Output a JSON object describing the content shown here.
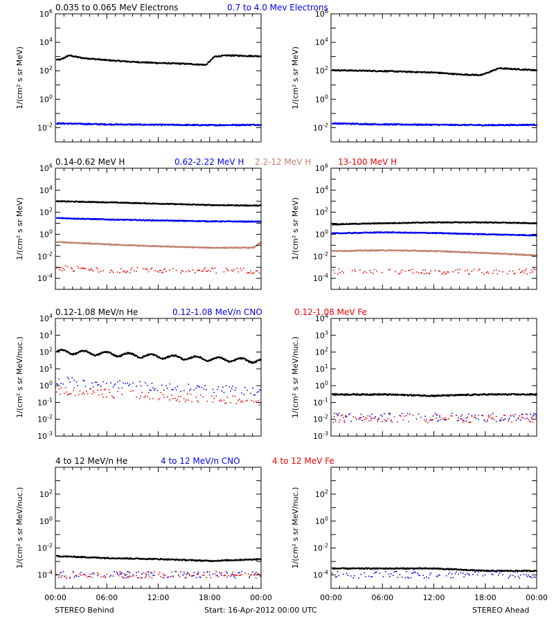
{
  "colors": {
    "black": "#000000",
    "blue": "#0000ee",
    "tan": "#c08070",
    "red": "#ee0000"
  },
  "footer": {
    "left": "STEREO Behind",
    "center": "Start: 16-Apr-2012 00:00 UTC",
    "right": "STEREO Ahead"
  },
  "x_ticks": [
    "00:00",
    "06:00",
    "12:00",
    "18:00",
    "00:00"
  ],
  "rows": [
    {
      "ylabel": "1/(cm² s sr MeV)",
      "ylim_exp": [
        -3,
        6
      ],
      "tick_exps": [
        -2,
        0,
        2,
        4,
        6
      ],
      "legend": [
        {
          "text": "0.035 to 0.065 MeV Electrons",
          "color": "#000000"
        },
        {
          "text": "0.7 to 4.0 Mev Electrons",
          "color": "#0000ee"
        }
      ]
    },
    {
      "ylabel": "1/(cm² s sr MeV)",
      "ylim_exp": [
        -5,
        6
      ],
      "tick_exps": [
        -4,
        -2,
        0,
        2,
        4,
        6
      ],
      "legend": [
        {
          "text": "0.14-0.62 MeV H",
          "color": "#000000"
        },
        {
          "text": "0.62-2.22 MeV H",
          "color": "#0000ee"
        },
        {
          "text": "2.2-12 MeV H",
          "color": "#c08070"
        },
        {
          "text": "13-100 MeV H",
          "color": "#ee0000"
        }
      ]
    },
    {
      "ylabel": "1/(cm² s sr MeV/nuc.)",
      "ylim_exp": [
        -3,
        4
      ],
      "tick_exps": [
        -3,
        -2,
        -1,
        0,
        1,
        2,
        3,
        4
      ],
      "legend": [
        {
          "text": "0.12-1.08 MeV/n He",
          "color": "#000000"
        },
        {
          "text": "0.12-1.08 MeV/n CNO",
          "color": "#0000ee"
        },
        {
          "text": "0.12-1.08 MeV Fe",
          "color": "#ee0000"
        }
      ]
    },
    {
      "ylabel": "1/(cm² s sr MeV/nuc.)",
      "ylim_exp": [
        -5,
        4
      ],
      "tick_exps": [
        -4,
        -2,
        0,
        2
      ],
      "legend": [
        {
          "text": "4 to 12 MeV/n He",
          "color": "#000000"
        },
        {
          "text": "4 to 12 MeV/n CNO",
          "color": "#0000ee"
        },
        {
          "text": "4 to 12 MeV Fe",
          "color": "#ee0000"
        }
      ]
    }
  ],
  "chart_data": [
    {
      "type": "scatter",
      "spacecraft": "STEREO Behind",
      "yscale": "log",
      "ylim": [
        0.001,
        1000000
      ],
      "xlim_hours": [
        0,
        24
      ],
      "series": [
        {
          "name": "0.035 to 0.065 MeV Electrons",
          "color": "#000000",
          "x": [
            0.5,
            1.5,
            3,
            6,
            9,
            12,
            15,
            17.5,
            18.5,
            20,
            24
          ],
          "y": [
            600,
            1200,
            800,
            550,
            420,
            350,
            310,
            260,
            1000,
            1200,
            1050
          ]
        },
        {
          "name": "0.7 to 4.0 Mev Electrons",
          "color": "#0000ee",
          "x": [
            0,
            6,
            12,
            18,
            24
          ],
          "y": [
            0.02,
            0.017,
            0.016,
            0.015,
            0.016
          ]
        }
      ]
    },
    {
      "type": "scatter",
      "spacecraft": "STEREO Ahead",
      "yscale": "log",
      "ylim": [
        0.001,
        1000000
      ],
      "xlim_hours": [
        0,
        24
      ],
      "series": [
        {
          "name": "0.035 to 0.065 MeV Electrons",
          "color": "#000000",
          "x": [
            0,
            6,
            12,
            15,
            17.5,
            19.5,
            22,
            24
          ],
          "y": [
            110,
            95,
            75,
            55,
            50,
            150,
            125,
            110
          ]
        },
        {
          "name": "0.7 to 4.0 Mev Electrons",
          "color": "#0000ee",
          "x": [
            0,
            6,
            12,
            18,
            24
          ],
          "y": [
            0.02,
            0.017,
            0.016,
            0.015,
            0.016
          ]
        }
      ]
    },
    {
      "type": "scatter",
      "spacecraft": "STEREO Behind",
      "yscale": "log",
      "ylim": [
        1e-05,
        1000000
      ],
      "xlim_hours": [
        0,
        24
      ],
      "series": [
        {
          "name": "0.14-0.62 MeV H",
          "color": "#000000",
          "x": [
            0,
            6,
            12,
            18,
            24
          ],
          "y": [
            1000,
            800,
            600,
            450,
            400
          ]
        },
        {
          "name": "0.62-2.22 MeV H",
          "color": "#0000ee",
          "x": [
            0,
            6,
            12,
            18,
            24
          ],
          "y": [
            30,
            22,
            18,
            15,
            14
          ]
        },
        {
          "name": "2.2-12 MeV H",
          "color": "#c08070",
          "x": [
            0,
            6,
            12,
            18,
            23,
            24
          ],
          "y": [
            0.2,
            0.12,
            0.08,
            0.06,
            0.06,
            0.2
          ]
        },
        {
          "name": "13-100 MeV H",
          "color": "#ee0000",
          "x": [
            0,
            6,
            12,
            18,
            24
          ],
          "y": [
            0.0008,
            0.0006,
            0.0005,
            0.0005,
            0.0005
          ]
        }
      ]
    },
    {
      "type": "scatter",
      "spacecraft": "STEREO Ahead",
      "yscale": "log",
      "ylim": [
        1e-05,
        1000000
      ],
      "xlim_hours": [
        0,
        24
      ],
      "series": [
        {
          "name": "0.14-0.62 MeV H",
          "color": "#000000",
          "x": [
            0,
            6,
            12,
            18,
            24
          ],
          "y": [
            8,
            10,
            12,
            12,
            10
          ]
        },
        {
          "name": "0.62-2.22 MeV H",
          "color": "#0000ee",
          "x": [
            0,
            6,
            12,
            18,
            24
          ],
          "y": [
            1.2,
            1.5,
            1.3,
            1.0,
            0.8
          ]
        },
        {
          "name": "2.2-12 MeV H",
          "color": "#c08070",
          "x": [
            0,
            6,
            12,
            18,
            24
          ],
          "y": [
            0.03,
            0.035,
            0.03,
            0.02,
            0.012
          ]
        },
        {
          "name": "13-100 MeV H",
          "color": "#ee0000",
          "x": [
            0,
            6,
            12,
            18,
            24
          ],
          "y": [
            0.0004,
            0.0004,
            0.0004,
            0.0004,
            0.0004
          ]
        }
      ]
    },
    {
      "type": "scatter",
      "spacecraft": "STEREO Behind",
      "yscale": "log",
      "ylim": [
        0.001,
        10000
      ],
      "xlim_hours": [
        0,
        24
      ],
      "series": [
        {
          "name": "0.12-1.08 MeV/n He",
          "color": "#000000",
          "x": [
            0,
            6,
            12,
            18,
            24
          ],
          "y": [
            110,
            80,
            55,
            40,
            30
          ]
        },
        {
          "name": "0.12-1.08 MeV/n CNO",
          "color": "#0000ee",
          "x": [
            0,
            6,
            12,
            18,
            24
          ],
          "y": [
            2.0,
            1.3,
            0.8,
            0.6,
            0.45
          ]
        },
        {
          "name": "0.12-1.08 MeV Fe",
          "color": "#ee0000",
          "x": [
            0,
            6,
            12,
            18,
            24
          ],
          "y": [
            0.5,
            0.35,
            0.22,
            0.15,
            0.12
          ]
        }
      ]
    },
    {
      "type": "scatter",
      "spacecraft": "STEREO Ahead",
      "yscale": "log",
      "ylim": [
        0.001,
        10000
      ],
      "xlim_hours": [
        0,
        24
      ],
      "series": [
        {
          "name": "0.12-1.08 MeV/n He",
          "color": "#000000",
          "x": [
            0,
            6,
            12,
            18,
            24
          ],
          "y": [
            0.3,
            0.3,
            0.25,
            0.3,
            0.3
          ]
        },
        {
          "name": "0.12-1.08 MeV/n CNO",
          "color": "#0000ee",
          "x": [
            0,
            6,
            12,
            18,
            24
          ],
          "y": [
            0.013,
            0.013,
            0.013,
            0.013,
            0.013
          ]
        },
        {
          "name": "0.12-1.08 MeV Fe",
          "color": "#ee0000",
          "x": [
            0,
            6,
            12,
            18,
            24
          ],
          "y": [
            0.011,
            0.011,
            0.011,
            0.011,
            0.011
          ]
        }
      ]
    },
    {
      "type": "scatter",
      "spacecraft": "STEREO Behind",
      "yscale": "log",
      "ylim": [
        1e-05,
        10000
      ],
      "xlim_hours": [
        0,
        24
      ],
      "series": [
        {
          "name": "4 to 12 MeV/n He",
          "color": "#000000",
          "x": [
            0,
            6,
            12,
            18,
            24
          ],
          "y": [
            0.0025,
            0.0018,
            0.0015,
            0.0011,
            0.0015
          ]
        },
        {
          "name": "4 to 12 MeV/n CNO",
          "color": "#0000ee",
          "x": [
            0,
            6,
            12,
            18,
            24
          ],
          "y": [
            0.0001,
            0.0001,
            0.0001,
            0.0001,
            0.0001
          ]
        },
        {
          "name": "4 to 12 MeV Fe",
          "color": "#ee0000",
          "x": [
            0,
            6,
            12,
            18,
            24
          ],
          "y": [
            0.0001,
            0.0001,
            0.0001,
            0.0001,
            0.0001
          ]
        }
      ]
    },
    {
      "type": "scatter",
      "spacecraft": "STEREO Ahead",
      "yscale": "log",
      "ylim": [
        1e-05,
        10000
      ],
      "xlim_hours": [
        0,
        24
      ],
      "series": [
        {
          "name": "4 to 12 MeV/n He",
          "color": "#000000",
          "x": [
            0,
            6,
            12,
            18,
            24
          ],
          "y": [
            0.0003,
            0.0003,
            0.0003,
            0.0002,
            0.0002
          ]
        },
        {
          "name": "4 to 12 MeV/n CNO",
          "color": "#0000ee",
          "x": [
            0,
            6,
            12,
            18,
            24
          ],
          "y": [
            0.0001,
            0.0001,
            0.0001,
            0.0001,
            0.0001
          ]
        }
      ]
    }
  ]
}
